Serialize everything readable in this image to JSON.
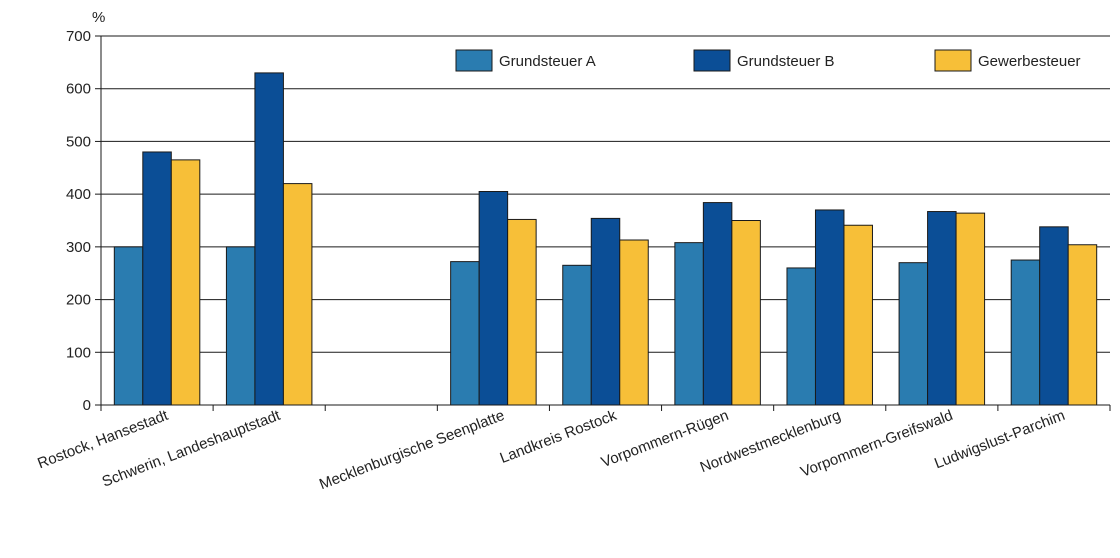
{
  "chart_data": {
    "type": "bar",
    "ylabel": "%",
    "ylim": [
      0,
      700
    ],
    "yticks": [
      0,
      100,
      200,
      300,
      400,
      500,
      600,
      700
    ],
    "grid": true,
    "legend_position": "top-right",
    "categories": [
      "Rostock, Hansestadt",
      "Schwerin, Landeshauptstadt",
      "",
      "Mecklenburgische Seenplatte",
      "Landkreis Rostock",
      "Vorpommern-Rügen",
      "Nordwestmecklenburg",
      "Vorpommern-Greifswald",
      "Ludwigslust-Parchim"
    ],
    "series": [
      {
        "name": "Grundsteuer A",
        "color": "#2a7cb0",
        "values": [
          300,
          300,
          null,
          272,
          265,
          308,
          260,
          270,
          275
        ]
      },
      {
        "name": "Grundsteuer B",
        "color": "#0b4e96",
        "values": [
          480,
          630,
          null,
          405,
          354,
          384,
          370,
          367,
          338
        ]
      },
      {
        "name": "Gewerbesteuer",
        "color": "#f7bf38",
        "values": [
          465,
          420,
          null,
          352,
          313,
          350,
          341,
          364,
          304
        ]
      }
    ]
  }
}
